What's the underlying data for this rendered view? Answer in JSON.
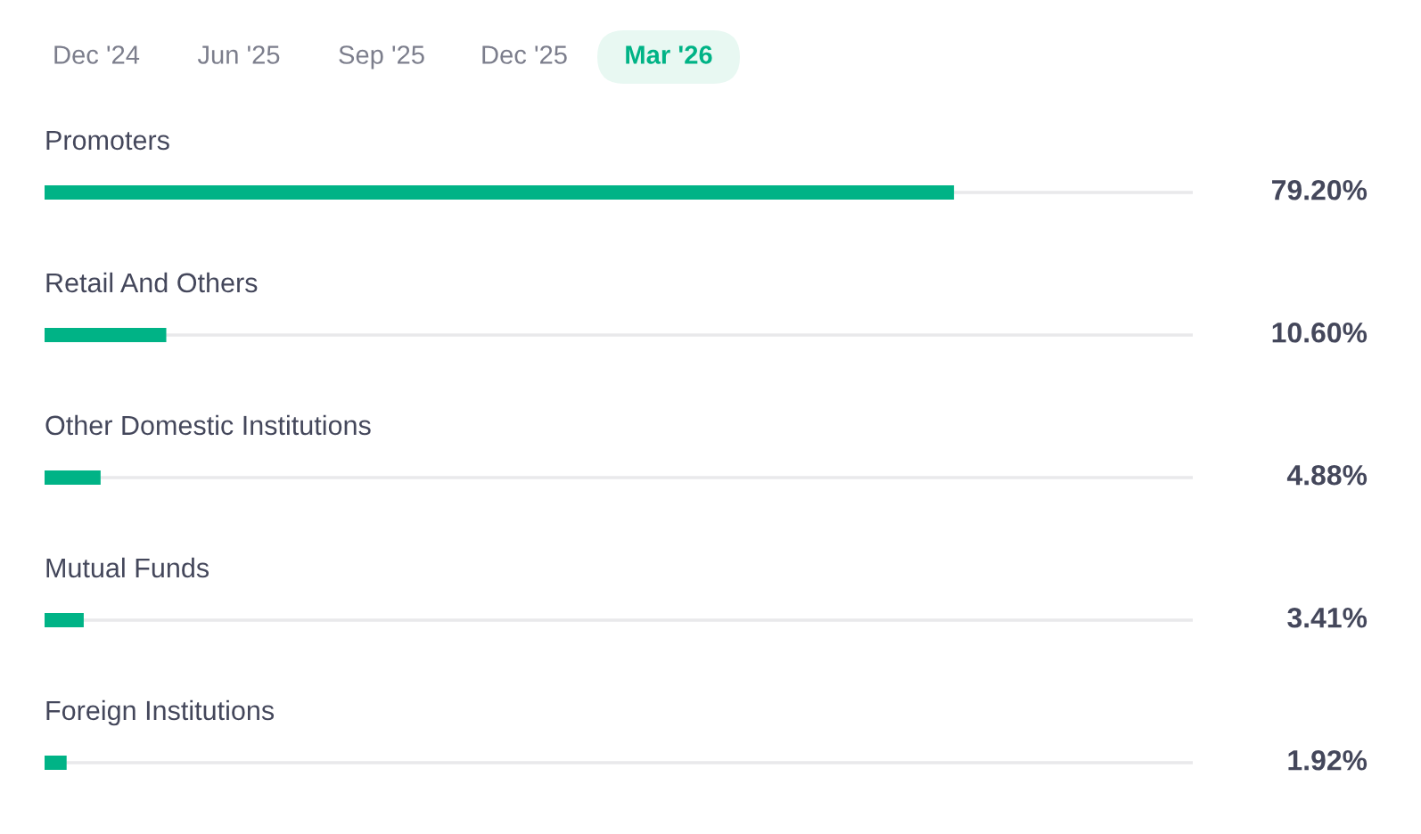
{
  "chart_data": {
    "type": "bar",
    "orientation": "horizontal",
    "title": "Mar '26",
    "annotations": [
      "Dec '24",
      "Jun '25",
      "Sep '25",
      "Dec '25"
    ],
    "categories": [
      "Promoters",
      "Retail And Others",
      "Other Domestic Institutions",
      "Mutual Funds",
      "Foreign Institutions"
    ],
    "values": [
      79.2,
      10.6,
      4.88,
      3.41,
      1.92
    ],
    "value_labels": [
      "79.20%",
      "10.60%",
      "4.88%",
      "3.41%",
      "1.92%"
    ],
    "color": "#00b386",
    "xlim": [
      0,
      100
    ],
    "grid": "y"
  }
}
